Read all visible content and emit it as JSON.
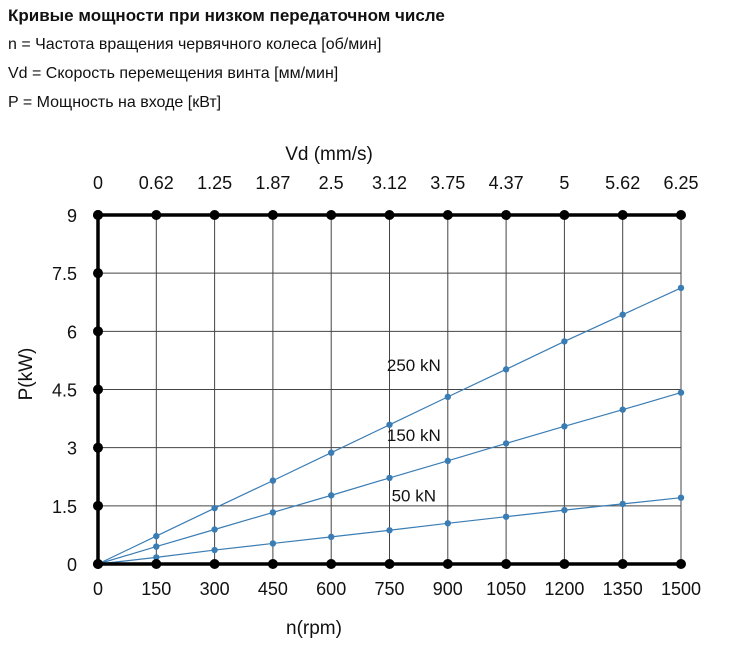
{
  "header": {
    "title": "Кривые мощности при низком передаточном числе",
    "line_n": "n = Частота вращения червячного колеса [об/мин]",
    "line_vd": "Vd = Скорость перемещения винта [мм/мин]",
    "line_p": "P = Мощность на входе [кВт]"
  },
  "chart_data": {
    "type": "line",
    "xlabel": "n(rpm)",
    "ylabel": "P(kW)",
    "top_axis_label": "Vd (mm/s)",
    "x_ticks": [
      "0",
      "150",
      "300",
      "450",
      "600",
      "750",
      "900",
      "1050",
      "1200",
      "1350",
      "1500"
    ],
    "top_ticks": [
      "0",
      "0.62",
      "1.25",
      "1.87",
      "2.5",
      "3.12",
      "3.75",
      "4.37",
      "5",
      "5.62",
      "6.25"
    ],
    "y_ticks": [
      "0",
      "1.5",
      "3",
      "4.5",
      "6",
      "7.5",
      "9"
    ],
    "xlim": [
      0,
      1500
    ],
    "ylim": [
      0,
      9
    ],
    "grid": true,
    "x": [
      0,
      150,
      300,
      450,
      600,
      750,
      900,
      1050,
      1200,
      1350,
      1500
    ],
    "series": [
      {
        "name": "250 kN",
        "values": [
          0,
          0.72,
          1.44,
          2.15,
          2.87,
          3.59,
          4.31,
          5.02,
          5.74,
          6.43,
          7.12
        ]
      },
      {
        "name": "150 kN",
        "values": [
          0,
          0.45,
          0.89,
          1.33,
          1.77,
          2.22,
          2.66,
          3.11,
          3.55,
          3.98,
          4.42
        ]
      },
      {
        "name": "50 kN",
        "values": [
          0,
          0.17,
          0.36,
          0.53,
          0.7,
          0.87,
          1.05,
          1.22,
          1.39,
          1.55,
          1.71
        ]
      }
    ],
    "colors": {
      "series": "#3a7db5",
      "grid": "#444444",
      "frame": "#000000",
      "marker": "#000000"
    }
  }
}
